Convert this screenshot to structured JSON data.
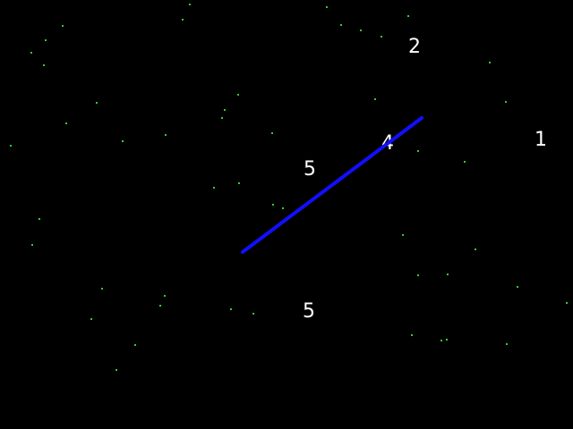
{
  "colors": {
    "background": "#000000",
    "stars": "#33cc33",
    "digits": "#ffffff",
    "line": "#1010ff"
  },
  "digits": [
    {
      "id": "digit-2",
      "label": "2"
    },
    {
      "id": "digit-1",
      "label": "1"
    },
    {
      "id": "digit-4",
      "label": "4"
    },
    {
      "id": "digit-5-upper",
      "label": "5"
    },
    {
      "id": "digit-5-lower",
      "label": "5"
    }
  ]
}
